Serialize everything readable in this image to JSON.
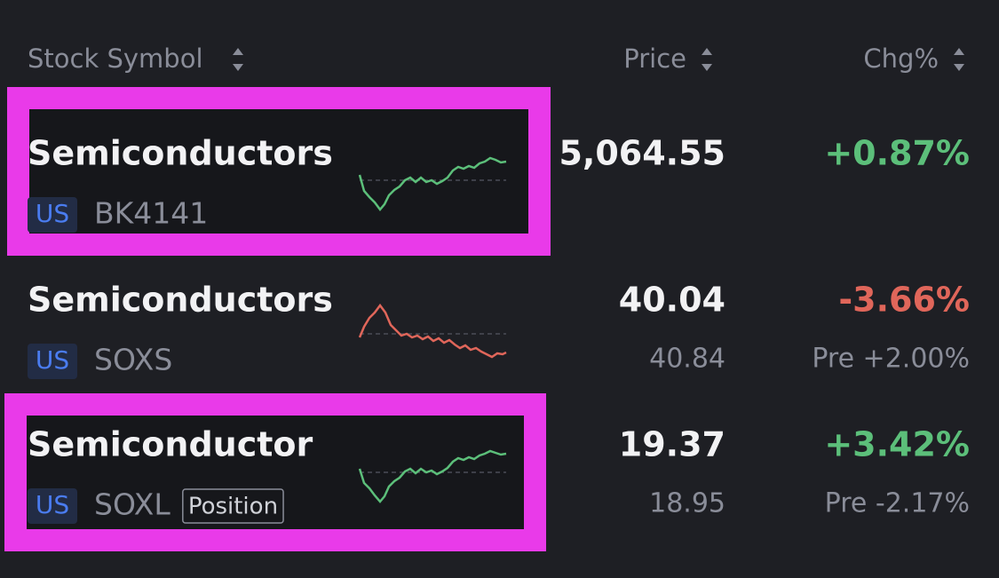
{
  "header": {
    "columns": [
      "Stock Symbol",
      "Price",
      "Chg%"
    ]
  },
  "rows": [
    {
      "name": "Semiconductors",
      "market": "US",
      "symbol": "BK4141",
      "price": "5,064.55",
      "change": "+0.87%",
      "direction": "up"
    },
    {
      "name": "Semiconductors",
      "market": "US",
      "symbol": "SOXS",
      "price": "40.04",
      "change": "-3.66%",
      "direction": "down",
      "pre_price": "40.84",
      "pre_change": "Pre +2.00%"
    },
    {
      "name": "Semiconductor",
      "market": "US",
      "symbol": "SOXL",
      "badge": "Position",
      "price": "19.37",
      "change": "+3.42%",
      "direction": "up",
      "pre_price": "18.95",
      "pre_change": "Pre -2.17%"
    }
  ]
}
